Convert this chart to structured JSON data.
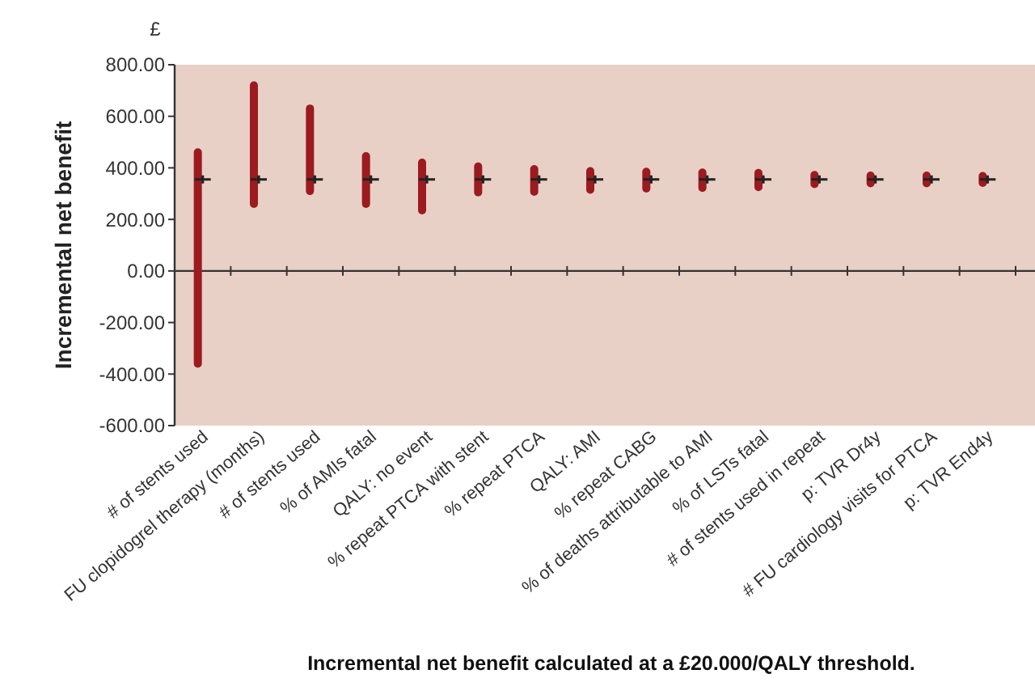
{
  "chart_data": {
    "type": "bar",
    "ylabel": "Incremental net benefit",
    "xlabel": "Incremental net benefit calculated at a £20.000/QALY threshold.",
    "annotations": [
      "£"
    ],
    "categories": [
      "# of stents used",
      "FU clopidogrel therapy (months)",
      "# of stents used",
      "% of AMIs fatal",
      "QALY: no event",
      "% repeat PTCA with stent",
      "% repeat PTCA",
      "QALY: AMI",
      "% repeat CABG",
      "% of deaths attributable to AMI",
      "% of LSTs fatal",
      "# of stents used in repeat",
      "p: TVR Dr4y",
      "# FU cardiology visits for PTCA",
      "p: TVR End4y"
    ],
    "series": [
      {
        "color": "#9b1b20",
        "base": [
          -360,
          260,
          310,
          260,
          235,
          305,
          307,
          315,
          320,
          322,
          325,
          337,
          340,
          340,
          342
        ],
        "values": [
          820,
          460,
          320,
          185,
          185,
          100,
          88,
          72,
          65,
          60,
          55,
          35,
          30,
          30,
          26
        ]
      },
      {
        "type": "scatter",
        "color": "#222222",
        "marker": "cross",
        "values": [
          355,
          355,
          355,
          355,
          355,
          355,
          355,
          355,
          355,
          355,
          355,
          355,
          355,
          355,
          355
        ]
      }
    ],
    "ylim": [
      -600,
      800
    ],
    "yticks": [
      {
        "value": -600,
        "label": "-600.00"
      },
      {
        "value": -400,
        "label": "-400.00"
      },
      {
        "value": -200,
        "label": "-200.00"
      },
      {
        "value": 0,
        "label": "0.00"
      },
      {
        "value": 200,
        "label": "200.00"
      },
      {
        "value": 400,
        "label": "400.00"
      },
      {
        "value": 600,
        "label": "600.00"
      },
      {
        "value": 800,
        "label": "800.00"
      }
    ],
    "ref_lines": [
      {
        "axis": "y",
        "value": 0,
        "color": "#333333"
      }
    ]
  }
}
